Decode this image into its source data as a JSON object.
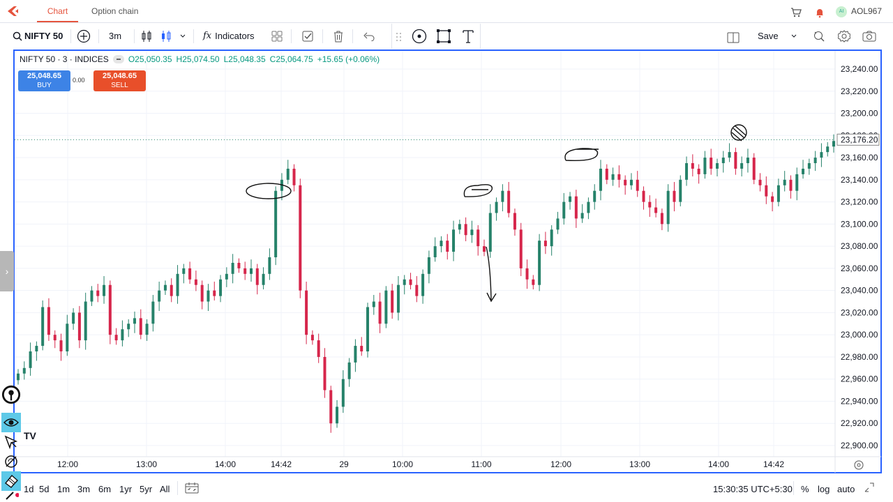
{
  "nav": {
    "tabs": [
      {
        "label": "Chart"
      },
      {
        "label": "Option chain"
      }
    ],
    "user": "AOL967",
    "avatar_initials": "AI"
  },
  "toolbar": {
    "symbol": "NIFTY 50",
    "interval": "3m",
    "indicators_label": "Indicators",
    "save_label": "Save",
    "fx": "fx"
  },
  "legend": {
    "symbol_line": "NIFTY 50 · 3 · INDICES",
    "open": "O25,050.35",
    "high": "H25,074.50",
    "low": "L25,048.35",
    "close": "C25,064.75",
    "change": "+15.65 (+0.06%)"
  },
  "trade": {
    "buy_price": "25,048.65",
    "buy_label": "BUY",
    "sell_price": "25,048.65",
    "sell_label": "SELL",
    "spread": "0.00"
  },
  "price_axis": {
    "ticks": [
      "23,240.00",
      "23,220.00",
      "23,200.00",
      "23,180.00",
      "23,160.00",
      "23,140.00",
      "23,120.00",
      "23,100.00",
      "23,080.00",
      "23,060.00",
      "23,040.00",
      "23,020.00",
      "23,000.00",
      "22,980.00",
      "22,960.00",
      "22,940.00",
      "22,920.00",
      "22,900.00"
    ],
    "last_price": "23,176.20"
  },
  "time_axis": {
    "ticks": [
      "12:00",
      "13:00",
      "14:00",
      "14:42",
      "29",
      "10:00",
      "11:00",
      "12:00",
      "13:00",
      "14:00",
      "14:42"
    ]
  },
  "bottombar": {
    "ranges": [
      "1d",
      "5d",
      "1m",
      "3m",
      "6m",
      "1yr",
      "5yr",
      "All"
    ],
    "clock": "15:30:35 UTC+5:30",
    "percent": "%",
    "log": "log",
    "auto": "auto"
  },
  "watermark": "TV",
  "colors": {
    "up": "#26826a",
    "down": "#d6264b",
    "accent": "#2962ff",
    "brand": "#e5533d"
  },
  "chart_data": {
    "type": "candlestick",
    "ylim": [
      22890,
      23250
    ],
    "closes": [
      22965,
      22970,
      22985,
      22990,
      23025,
      23000,
      22995,
      22985,
      23010,
      23020,
      22995,
      23030,
      23040,
      23035,
      23045,
      23000,
      22995,
      23005,
      23010,
      23015,
      23000,
      23010,
      23030,
      23040,
      23045,
      23035,
      23055,
      23060,
      23050,
      23045,
      23030,
      23040,
      23035,
      23050,
      23055,
      23065,
      23060,
      23055,
      23060,
      23045,
      23055,
      23070,
      23130,
      23140,
      23150,
      23135,
      23040,
      23000,
      22995,
      22980,
      22950,
      22920,
      22935,
      22960,
      22975,
      22990,
      22985,
      23025,
      23030,
      23010,
      23040,
      23020,
      23045,
      23050,
      23045,
      23035,
      23055,
      23070,
      23080,
      23085,
      23075,
      23095,
      23100,
      23090,
      23095,
      23080,
      23075,
      23110,
      23120,
      23130,
      23110,
      23095,
      23060,
      23050,
      23045,
      23085,
      23080,
      23095,
      23105,
      23120,
      23125,
      23105,
      23110,
      23120,
      23130,
      23150,
      23140,
      23145,
      23140,
      23135,
      23140,
      23130,
      23120,
      23115,
      23110,
      23100,
      23130,
      23120,
      23140,
      23155,
      23150,
      23145,
      23160,
      23150,
      23155,
      23160,
      23165,
      23150,
      23155,
      23160,
      23140,
      23135,
      23125,
      23120,
      23135,
      23140,
      23130,
      23145,
      23150,
      23155,
      23160,
      23165,
      23170,
      23175
    ]
  },
  "annotations": [
    "ellipse",
    "ellipse",
    "ellipse",
    "arrow",
    "pin"
  ]
}
